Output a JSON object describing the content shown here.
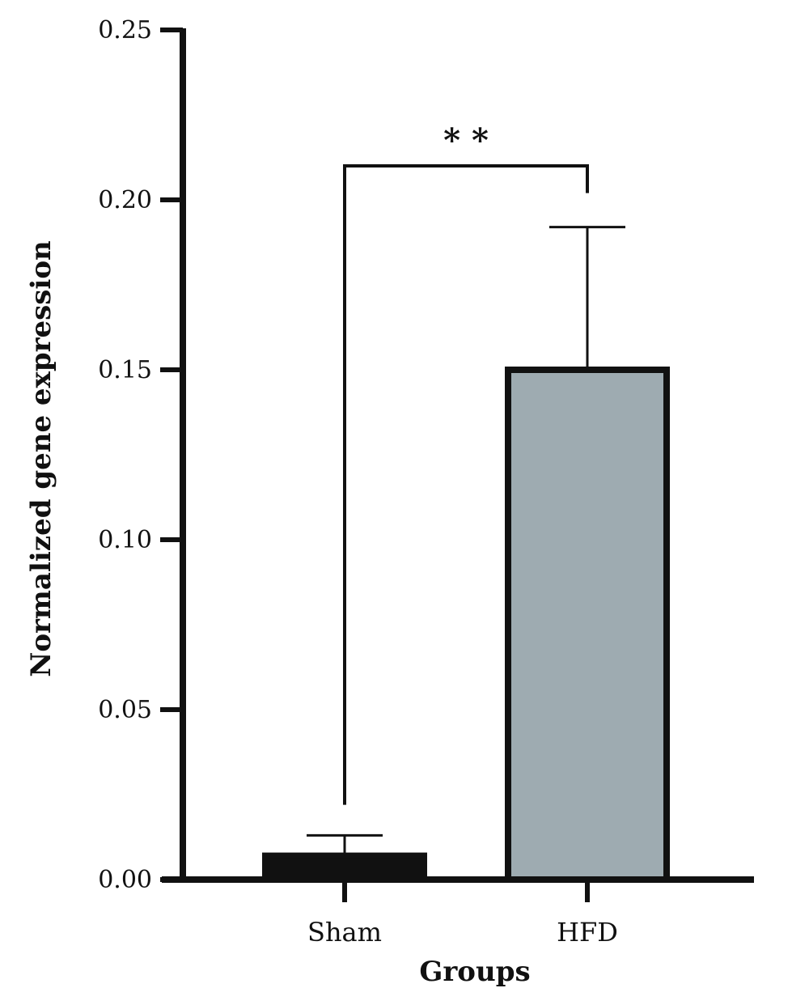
{
  "chart_data": {
    "type": "bar",
    "title": "",
    "xlabel": "Groups",
    "ylabel": "Normalized gene expression",
    "categories": [
      "Sham",
      "HFD"
    ],
    "values": [
      0.007,
      0.15
    ],
    "error_upper": [
      0.013,
      0.192
    ],
    "ylim": [
      0,
      0.25
    ],
    "yticks": [
      "0.00",
      "0.05",
      "0.10",
      "0.15",
      "0.20",
      "0.25"
    ],
    "grid": false,
    "legend": "none",
    "bar_colors": [
      "#111111",
      "#9eabb1"
    ],
    "significance": {
      "label": "* *",
      "from": "Sham",
      "to": "HFD",
      "bracket_y": 0.21,
      "left_drop_to": 0.022,
      "right_drop_to": 0.202
    }
  }
}
